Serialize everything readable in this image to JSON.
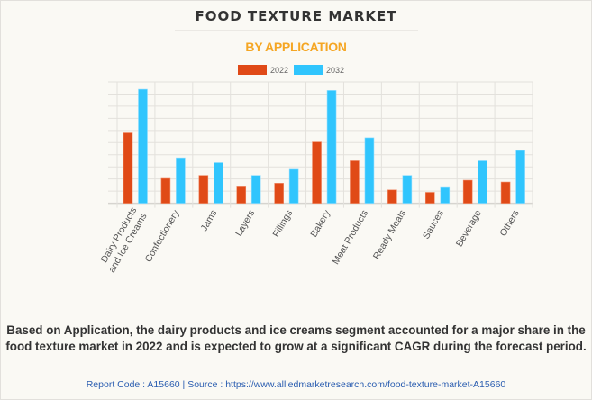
{
  "header": {
    "title": "FOOD TEXTURE MARKET",
    "subtitle": "BY APPLICATION"
  },
  "colors": {
    "series_2022": "#e04a17",
    "series_2032": "#30c5fd",
    "subtitle": "#f5a623",
    "grid": "#e3e1dc",
    "background": "#faf9f4"
  },
  "chart_data": {
    "type": "bar",
    "title": "FOOD TEXTURE MARKET",
    "subtitle": "BY APPLICATION",
    "xlabel": "",
    "ylabel": "",
    "y_units": "relative (gridline units; no y-axis tick labels shown)",
    "ylim": [
      0,
      10
    ],
    "grid": true,
    "legend_position": "top-center",
    "categories": [
      "Dairy Products and Ice Creams",
      "Confectionery",
      "Jams",
      "Layers",
      "Fillings",
      "Bakery",
      "Meat Products",
      "Ready Meals",
      "Sauces",
      "Beverage",
      "Others"
    ],
    "category_lines": [
      [
        "Dairy Products",
        "and Ice Creams"
      ],
      [
        "Confectionery"
      ],
      [
        "Jams"
      ],
      [
        "Layers"
      ],
      [
        "Fillings"
      ],
      [
        "Bakery"
      ],
      [
        "Meat Products"
      ],
      [
        "Ready Meals"
      ],
      [
        "Sauces"
      ],
      [
        "Beverage"
      ],
      [
        "Others"
      ]
    ],
    "series": [
      {
        "name": "2022",
        "values": [
          5.8,
          2.05,
          2.3,
          1.35,
          1.65,
          5.05,
          3.5,
          1.1,
          0.9,
          1.9,
          1.75
        ]
      },
      {
        "name": "2032",
        "values": [
          9.4,
          3.75,
          3.35,
          2.3,
          2.8,
          9.3,
          5.4,
          2.3,
          1.3,
          3.5,
          4.35
        ]
      }
    ]
  },
  "legend": {
    "items": [
      {
        "label": "2022"
      },
      {
        "label": "2032"
      }
    ]
  },
  "footer": {
    "summary": "Based on Application, the dairy products and ice creams segment accounted for a major share in the food texture market in 2022 and is expected to grow at a significant CAGR during the forecast period.",
    "source": "Report Code : A15660  |  Source : https://www.alliedmarketresearch.com/food-texture-market-A15660"
  }
}
